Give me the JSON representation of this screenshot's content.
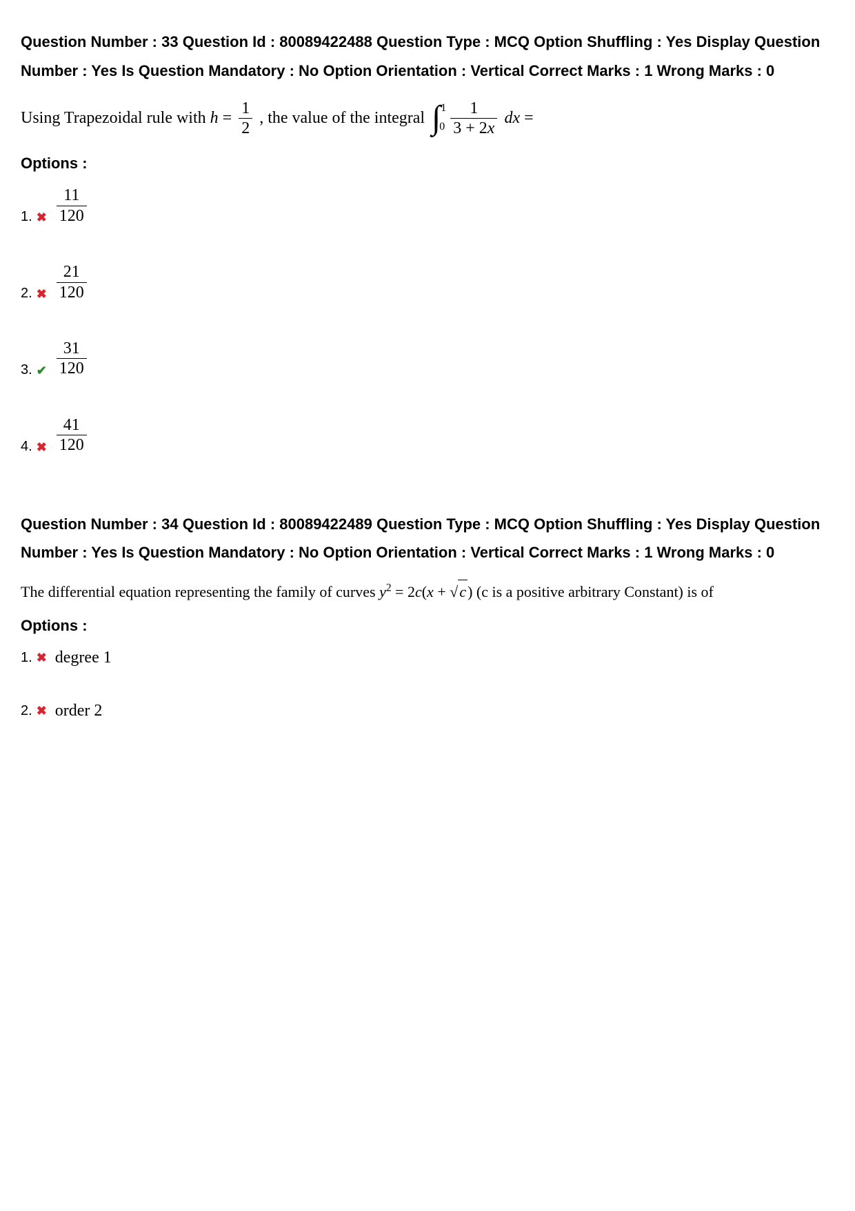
{
  "q1": {
    "meta": "Question Number : 33 Question Id : 80089422488 Question Type : MCQ Option Shuffling : Yes Display Question Number : Yes Is Question Mandatory : No Option Orientation : Vertical Correct Marks : 1 Wrong Marks : 0",
    "text_part1": "Using Trapezoidal rule with ",
    "h_var": "h",
    "equals1": " = ",
    "h_num": "1",
    "h_den": "2",
    "text_part2": " , the value of the integral ",
    "int_upper": "1",
    "int_lower": "0",
    "integ_num": "1",
    "integ_den_a": "3 + 2",
    "integ_den_x": "x",
    "dx_d": "d",
    "dx_x": "x",
    "equals2": " =",
    "options_label": "Options :",
    "options": [
      {
        "num": "1.",
        "correct": false,
        "frac_num": "11",
        "frac_den": "120"
      },
      {
        "num": "2.",
        "correct": false,
        "frac_num": "21",
        "frac_den": "120"
      },
      {
        "num": "3.",
        "correct": true,
        "frac_num": "31",
        "frac_den": "120"
      },
      {
        "num": "4.",
        "correct": false,
        "frac_num": "41",
        "frac_den": "120"
      }
    ]
  },
  "q2": {
    "meta": "Question Number : 34 Question Id : 80089422489 Question Type : MCQ Option Shuffling : Yes Display Question Number : Yes Is Question Mandatory : No Option Orientation : Vertical Correct Marks : 1 Wrong Marks : 0",
    "text_a": "The differential equation representing the family of curves ",
    "y_var": "y",
    "sq": "2",
    "eq": " = 2",
    "c1": "c",
    "paren_open": "(",
    "x_var": "x",
    "plus": " + ",
    "sqrt_sym": "√",
    "c2": "c",
    "paren_close": ")",
    "text_b": " (c is a positive arbitrary Constant) is of",
    "options_label": "Options :",
    "options": [
      {
        "num": "1.",
        "correct": false,
        "text": "degree 1"
      },
      {
        "num": "2.",
        "correct": false,
        "text": "order 2"
      }
    ]
  },
  "marks": {
    "wrong": "✖",
    "correct": "✔"
  }
}
